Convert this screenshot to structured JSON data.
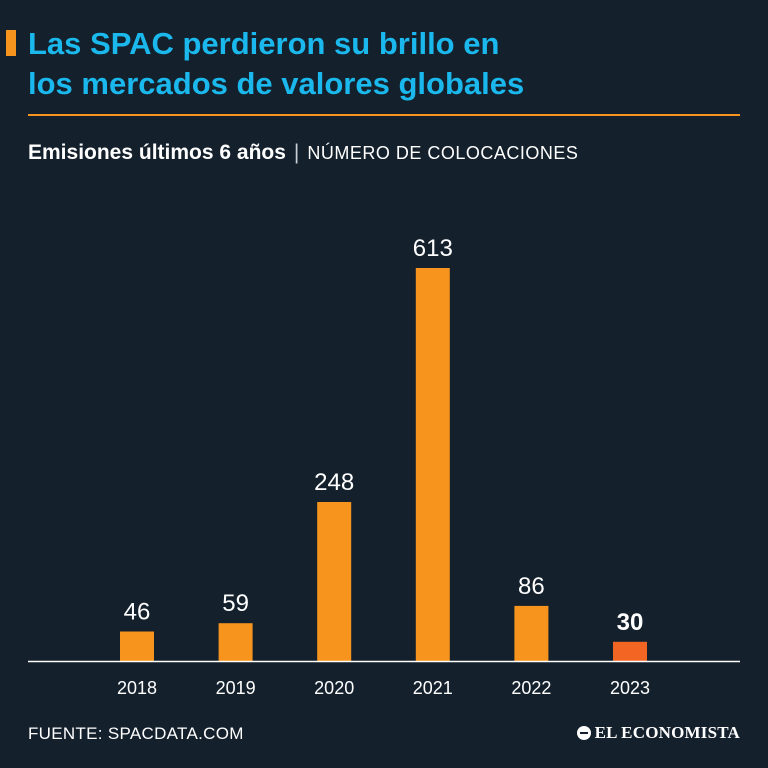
{
  "header": {
    "title_line1": "Las SPAC perdieron su brillo en",
    "title_line2": "los mercados de valores globales",
    "subtitle_bold": "Emisiones últimos 6 años",
    "subtitle_sep": "|",
    "subtitle_unit": "NÚMERO DE COLOCACIONES"
  },
  "colors": {
    "background": "#14202c",
    "title": "#1ab8ec",
    "bar": "#f7941d",
    "bar_highlight": "#f26522",
    "axis": "#ffffff"
  },
  "chart_data": {
    "type": "bar",
    "title": "Emisiones últimos 6 años",
    "ylabel": "NÚMERO DE COLOCACIONES",
    "xlabel": "",
    "categories": [
      "2018",
      "2019",
      "2020",
      "2021",
      "2022",
      "2023"
    ],
    "values": [
      46,
      59,
      248,
      613,
      86,
      30
    ],
    "highlight_index": 5,
    "ylim": [
      0,
      613
    ],
    "grid": false
  },
  "footer": {
    "source": "FUENTE: SPACDATA.COM",
    "logo": "EL ECONOMISTA"
  }
}
